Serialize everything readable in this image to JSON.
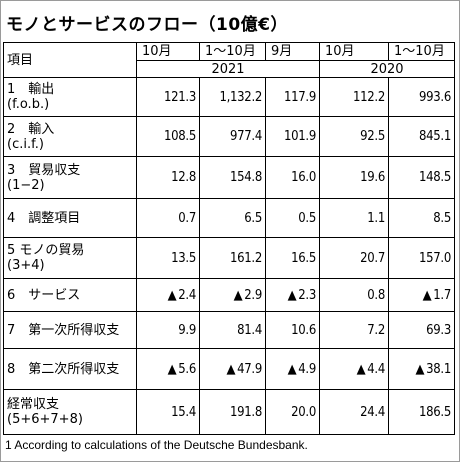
{
  "title": "モノとサービスのフロー（10億€）",
  "header": {
    "item_label": "項目",
    "cols": [
      "10月",
      "1～10月",
      "9月",
      "10月",
      "1～10月"
    ],
    "years": [
      "2021",
      "2020"
    ]
  },
  "rows": [
    {
      "label1": "1　輸出",
      "label2": "(f.o.b.)",
      "values": [
        "121.3",
        "1,132.2",
        "117.9",
        "112.2",
        "993.6"
      ],
      "neg": [
        false,
        false,
        false,
        false,
        false
      ]
    },
    {
      "label1": "2　輸入",
      "label2": "(c.i.f.)",
      "values": [
        "108.5",
        "977.4",
        "101.9",
        "92.5",
        "845.1"
      ],
      "neg": [
        false,
        false,
        false,
        false,
        false
      ]
    },
    {
      "label1": "3　貿易収支",
      "label2": "(1−2)",
      "values": [
        "12.8",
        "154.8",
        "16.0",
        "19.6",
        "148.5"
      ],
      "neg": [
        false,
        false,
        false,
        false,
        false
      ]
    },
    {
      "label1": "4　調整項目",
      "label2": "",
      "values": [
        "0.7",
        "6.5",
        "0.5",
        "1.1",
        "8.5"
      ],
      "neg": [
        false,
        false,
        false,
        false,
        false
      ]
    },
    {
      "label1": "5 モノの貿易",
      "label2": "(3+4)",
      "values": [
        "13.5",
        "161.2",
        "16.5",
        "20.7",
        "157.0"
      ],
      "neg": [
        false,
        false,
        false,
        false,
        false
      ]
    },
    {
      "label1": "6　サービス",
      "label2": "",
      "values": [
        "2.4",
        "2.9",
        "2.3",
        "0.8",
        "1.7"
      ],
      "neg": [
        true,
        true,
        true,
        false,
        true
      ]
    },
    {
      "label1": "7　第一次所得収支",
      "label2": "",
      "values": [
        "9.9",
        "81.4",
        "10.6",
        "7.2",
        "69.3"
      ],
      "neg": [
        false,
        false,
        false,
        false,
        false
      ]
    },
    {
      "label1": "8　第二次所得収支",
      "label2": "",
      "values": [
        "5.6",
        "47.9",
        "4.9",
        "4.4",
        "38.1"
      ],
      "neg": [
        true,
        true,
        true,
        true,
        true
      ]
    },
    {
      "label1": "経常収支",
      "label2": "(5+6+7+8)",
      "values": [
        "15.4",
        "191.8",
        "20.0",
        "24.4",
        "186.5"
      ],
      "neg": [
        false,
        false,
        false,
        false,
        false
      ]
    }
  ],
  "footnote": "1 According to calculations of the Deutsche Bundesbank."
}
